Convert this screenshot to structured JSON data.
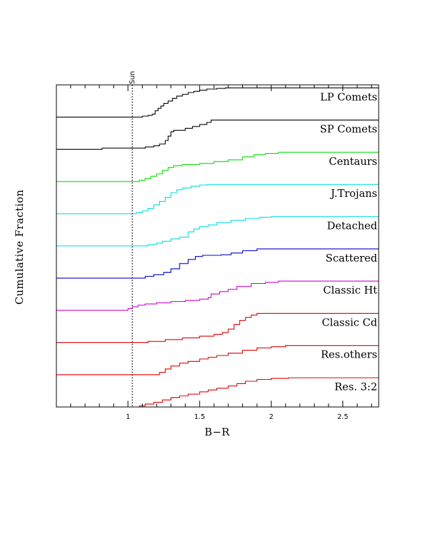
{
  "chart_data": {
    "type": "line",
    "subtype": "stacked cumulative step",
    "xlabel": "B−R",
    "ylabel": "Cumulative Fraction",
    "xlim": [
      0.5,
      2.75
    ],
    "xticks": [
      1,
      1.5,
      2,
      2.5
    ],
    "xtick_labels": [
      "1",
      "1.5",
      "2",
      "2.5"
    ],
    "grid": false,
    "reference_line": {
      "label": "Sun",
      "x": 1.03
    },
    "series": [
      {
        "name": "LP Comets",
        "color": "#000000",
        "points": [
          [
            0.5,
            0
          ],
          [
            1.06,
            0
          ],
          [
            1.1,
            0.03
          ],
          [
            1.14,
            0.06
          ],
          [
            1.17,
            0.1
          ],
          [
            1.19,
            0.22
          ],
          [
            1.21,
            0.3
          ],
          [
            1.23,
            0.38
          ],
          [
            1.25,
            0.47
          ],
          [
            1.28,
            0.55
          ],
          [
            1.31,
            0.64
          ],
          [
            1.34,
            0.72
          ],
          [
            1.38,
            0.78
          ],
          [
            1.42,
            0.84
          ],
          [
            1.46,
            0.88
          ],
          [
            1.5,
            0.92
          ],
          [
            1.55,
            0.96
          ],
          [
            1.62,
            0.98
          ],
          [
            1.68,
            1.0
          ],
          [
            2.75,
            1.0
          ]
        ]
      },
      {
        "name": "SP Comets",
        "color": "#000000",
        "points": [
          [
            0.5,
            0
          ],
          [
            0.8,
            0
          ],
          [
            0.82,
            0.04
          ],
          [
            1.08,
            0.04
          ],
          [
            1.12,
            0.08
          ],
          [
            1.18,
            0.12
          ],
          [
            1.22,
            0.18
          ],
          [
            1.26,
            0.3
          ],
          [
            1.28,
            0.45
          ],
          [
            1.3,
            0.6
          ],
          [
            1.32,
            0.65
          ],
          [
            1.4,
            0.72
          ],
          [
            1.45,
            0.78
          ],
          [
            1.5,
            0.85
          ],
          [
            1.55,
            0.92
          ],
          [
            1.58,
            1.0
          ],
          [
            2.75,
            1.0
          ]
        ]
      },
      {
        "name": "Centaurs",
        "color": "#00dd00",
        "points": [
          [
            0.5,
            0
          ],
          [
            1.04,
            0
          ],
          [
            1.08,
            0.04
          ],
          [
            1.12,
            0.1
          ],
          [
            1.16,
            0.18
          ],
          [
            1.2,
            0.26
          ],
          [
            1.24,
            0.38
          ],
          [
            1.28,
            0.48
          ],
          [
            1.32,
            0.54
          ],
          [
            1.38,
            0.58
          ],
          [
            1.5,
            0.62
          ],
          [
            1.6,
            0.68
          ],
          [
            1.7,
            0.74
          ],
          [
            1.8,
            0.84
          ],
          [
            1.88,
            0.92
          ],
          [
            1.96,
            0.96
          ],
          [
            2.05,
            1.0
          ],
          [
            2.75,
            1.0
          ]
        ]
      },
      {
        "name": "J.Trojans",
        "color": "#00dddd",
        "points": [
          [
            0.5,
            0
          ],
          [
            1.02,
            0
          ],
          [
            1.06,
            0.04
          ],
          [
            1.1,
            0.1
          ],
          [
            1.14,
            0.18
          ],
          [
            1.18,
            0.3
          ],
          [
            1.22,
            0.42
          ],
          [
            1.26,
            0.56
          ],
          [
            1.3,
            0.72
          ],
          [
            1.34,
            0.82
          ],
          [
            1.38,
            0.88
          ],
          [
            1.44,
            0.94
          ],
          [
            1.5,
            0.98
          ],
          [
            1.55,
            1.0
          ],
          [
            2.75,
            1.0
          ]
        ]
      },
      {
        "name": "Detached",
        "color": "#00dddd",
        "points": [
          [
            0.5,
            0
          ],
          [
            1.1,
            0
          ],
          [
            1.14,
            0.04
          ],
          [
            1.2,
            0.1
          ],
          [
            1.24,
            0.16
          ],
          [
            1.3,
            0.24
          ],
          [
            1.36,
            0.3
          ],
          [
            1.42,
            0.48
          ],
          [
            1.46,
            0.58
          ],
          [
            1.5,
            0.66
          ],
          [
            1.56,
            0.72
          ],
          [
            1.62,
            0.8
          ],
          [
            1.72,
            0.88
          ],
          [
            1.82,
            0.94
          ],
          [
            1.92,
            0.98
          ],
          [
            2.0,
            1.0
          ],
          [
            2.75,
            1.0
          ]
        ]
      },
      {
        "name": "Scattered",
        "color": "#0000cc",
        "points": [
          [
            0.5,
            0
          ],
          [
            1.05,
            0
          ],
          [
            1.12,
            0.06
          ],
          [
            1.18,
            0.12
          ],
          [
            1.25,
            0.2
          ],
          [
            1.3,
            0.32
          ],
          [
            1.36,
            0.5
          ],
          [
            1.42,
            0.64
          ],
          [
            1.47,
            0.74
          ],
          [
            1.52,
            0.78
          ],
          [
            1.65,
            0.8
          ],
          [
            1.72,
            0.86
          ],
          [
            1.8,
            0.94
          ],
          [
            1.9,
            1.0
          ],
          [
            2.75,
            1.0
          ]
        ]
      },
      {
        "name": "Classic Ht",
        "color": "#cc00cc",
        "points": [
          [
            0.5,
            0
          ],
          [
            0.98,
            0
          ],
          [
            1.0,
            0.06
          ],
          [
            1.03,
            0.12
          ],
          [
            1.07,
            0.18
          ],
          [
            1.12,
            0.22
          ],
          [
            1.2,
            0.26
          ],
          [
            1.3,
            0.3
          ],
          [
            1.4,
            0.34
          ],
          [
            1.5,
            0.38
          ],
          [
            1.56,
            0.44
          ],
          [
            1.58,
            0.56
          ],
          [
            1.64,
            0.64
          ],
          [
            1.7,
            0.72
          ],
          [
            1.76,
            0.82
          ],
          [
            1.86,
            0.92
          ],
          [
            1.96,
            0.96
          ],
          [
            2.05,
            1.0
          ],
          [
            2.75,
            1.0
          ]
        ]
      },
      {
        "name": "Classic Cd",
        "color": "#dd0000",
        "points": [
          [
            0.5,
            0
          ],
          [
            1.1,
            0
          ],
          [
            1.14,
            0.04
          ],
          [
            1.26,
            0.1
          ],
          [
            1.38,
            0.16
          ],
          [
            1.5,
            0.22
          ],
          [
            1.6,
            0.28
          ],
          [
            1.66,
            0.34
          ],
          [
            1.7,
            0.46
          ],
          [
            1.74,
            0.62
          ],
          [
            1.78,
            0.76
          ],
          [
            1.82,
            0.86
          ],
          [
            1.86,
            0.94
          ],
          [
            1.9,
            1.0
          ],
          [
            2.75,
            1.0
          ]
        ]
      },
      {
        "name": "Res.others",
        "color": "#dd0000",
        "points": [
          [
            0.5,
            0
          ],
          [
            1.18,
            0
          ],
          [
            1.22,
            0.08
          ],
          [
            1.26,
            0.2
          ],
          [
            1.3,
            0.3
          ],
          [
            1.36,
            0.4
          ],
          [
            1.42,
            0.46
          ],
          [
            1.5,
            0.54
          ],
          [
            1.56,
            0.6
          ],
          [
            1.62,
            0.66
          ],
          [
            1.7,
            0.74
          ],
          [
            1.8,
            0.84
          ],
          [
            1.9,
            0.92
          ],
          [
            2.0,
            0.96
          ],
          [
            2.1,
            1.0
          ],
          [
            2.75,
            1.0
          ]
        ]
      },
      {
        "name": "Res. 3:2",
        "color": "#dd0000",
        "points": [
          [
            0.5,
            0
          ],
          [
            1.04,
            0
          ],
          [
            1.08,
            0.04
          ],
          [
            1.12,
            0.1
          ],
          [
            1.18,
            0.16
          ],
          [
            1.24,
            0.24
          ],
          [
            1.3,
            0.32
          ],
          [
            1.36,
            0.38
          ],
          [
            1.42,
            0.44
          ],
          [
            1.5,
            0.52
          ],
          [
            1.56,
            0.58
          ],
          [
            1.62,
            0.64
          ],
          [
            1.7,
            0.72
          ],
          [
            1.76,
            0.8
          ],
          [
            1.82,
            0.88
          ],
          [
            1.9,
            0.94
          ],
          [
            2.0,
            0.98
          ],
          [
            2.12,
            1.0
          ],
          [
            2.75,
            1.0
          ]
        ]
      }
    ]
  }
}
